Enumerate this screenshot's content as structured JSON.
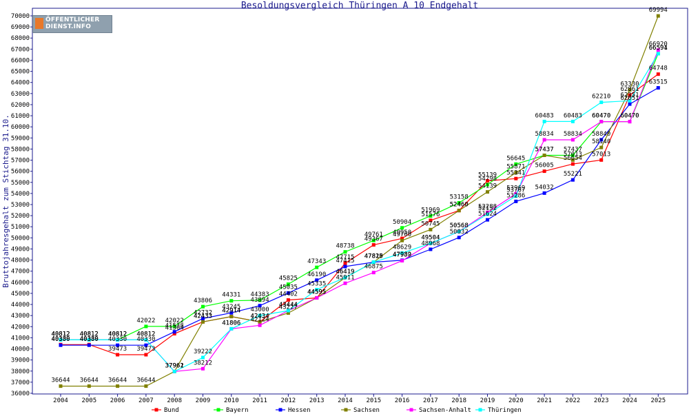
{
  "chart_data": {
    "type": "line",
    "title": "Besoldungsvergleich Thüringen A 10 Endgehalt",
    "ylabel": "Bruttojahresgehalt zum Stichtag 31.10.",
    "xlabel": "",
    "ylim": [
      36000,
      70000
    ],
    "ytick_step": 1000,
    "grid": false,
    "legend_position": "bottom",
    "categories": [
      "2004",
      "2005",
      "2006",
      "2007",
      "2008",
      "2009",
      "2010",
      "2011",
      "2012",
      "2013",
      "2014",
      "2015",
      "2016",
      "2017",
      "2018",
      "2019",
      "2020",
      "2021",
      "2022",
      "2023",
      "2024",
      "2025"
    ],
    "series": [
      {
        "name": "Bund",
        "color": "#ff0000",
        "values": [
          40389,
          40389,
          39473,
          39473,
          41364,
          42433,
          42914,
          42434,
          44402,
          44595,
          47715,
          49367,
          49950,
          51576,
          52460,
          55139,
          55341,
          56005,
          56654,
          57013,
          62861,
          64748
        ]
      },
      {
        "name": "Bayern",
        "color": "#00ff00",
        "values": [
          40812,
          40812,
          40812,
          42022,
          42022,
          43806,
          44331,
          44383,
          45825,
          47343,
          48738,
          49761,
          50904,
          51969,
          53158,
          54798,
          56645,
          57437,
          57437,
          60470,
          60470,
          66594
        ]
      },
      {
        "name": "Hessen",
        "color": "#0000ff",
        "values": [
          40330,
          40330,
          40330,
          40330,
          41538,
          42732,
          43245,
          43894,
          45035,
          46190,
          47415,
          47815,
          47982,
          48968,
          50032,
          51624,
          53286,
          54032,
          55221,
          58840,
          62051,
          63515
        ]
      },
      {
        "name": "Sachsen",
        "color": "#808000",
        "values": [
          36644,
          36644,
          36644,
          36644,
          37961,
          42433,
          42914,
          42434,
          43227,
          44595,
          46419,
          47815,
          49760,
          50745,
          52460,
          54139,
          55871,
          57437,
          57013,
          58140,
          63330,
          69994
        ]
      },
      {
        "name": "Sachsen-Anhalt",
        "color": "#ff00ff",
        "values": [
          40812,
          40812,
          40812,
          40812,
          37961,
          38212,
          41806,
          42124,
          43444,
          44595,
          45911,
          46875,
          47939,
          49504,
          50568,
          52288,
          53969,
          58834,
          58834,
          60470,
          60470,
          66920
        ]
      },
      {
        "name": "Thüringen",
        "color": "#00ffff",
        "values": [
          40812,
          40812,
          40812,
          40812,
          37962,
          39222,
          41806,
          43000,
          43444,
          45335,
          46419,
          47820,
          48629,
          49504,
          50568,
          52132,
          53767,
          60483,
          60483,
          62210,
          62351,
          66591
        ]
      }
    ]
  },
  "logo": {
    "line1": "ÖFFENTLICHER",
    "line2": "DIENST.INFO"
  }
}
